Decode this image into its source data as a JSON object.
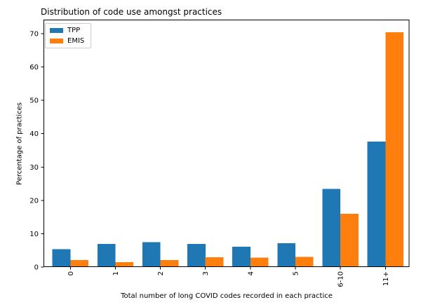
{
  "chart_data": {
    "type": "bar",
    "title": "Distribution of code use amongst practices",
    "xlabel": "Total number of long COVID codes recorded in each practice",
    "ylabel": "Percentage of practices",
    "categories": [
      "0",
      "1",
      "2",
      "3",
      "4",
      "5",
      "6-10",
      "11+"
    ],
    "series": [
      {
        "name": "TPP",
        "color": "#1f77b4",
        "values": [
          5.4,
          6.9,
          7.5,
          6.9,
          6.1,
          7.1,
          23.4,
          37.6
        ]
      },
      {
        "name": "EMIS",
        "color": "#ff7f0e",
        "values": [
          2.1,
          1.5,
          2.1,
          2.9,
          2.8,
          3.1,
          16.0,
          70.4
        ]
      }
    ],
    "yticks": [
      0,
      10,
      20,
      30,
      40,
      50,
      60,
      70
    ],
    "ylim": [
      0,
      74.2
    ],
    "bar_width": 0.4,
    "grid": false,
    "legend": {
      "position": "upper left",
      "entries": [
        "TPP",
        "EMIS"
      ]
    },
    "axis_color": "#000000",
    "background_color": "#ffffff"
  }
}
